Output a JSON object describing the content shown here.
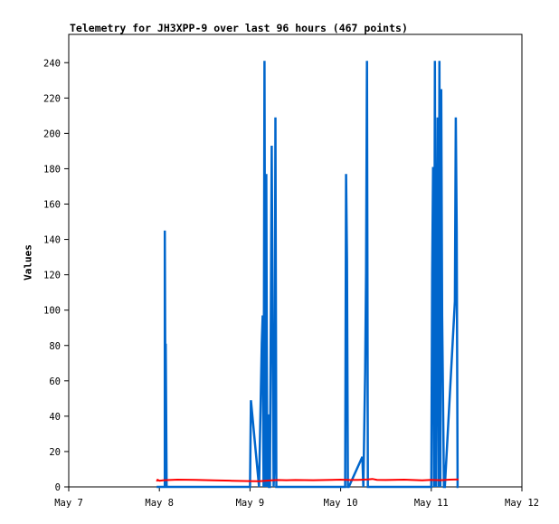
{
  "chart_data": {
    "type": "line",
    "title": "Telemetry for JH3XPP-9 over last 96 hours (467 points)",
    "xlabel": "",
    "ylabel": "Values",
    "ylim": [
      0,
      256
    ],
    "xlim": [
      0,
      5
    ],
    "x_tick_values": [
      0,
      1,
      2,
      3,
      4,
      5
    ],
    "x_tick_labels": [
      "May 7",
      "May 8",
      "May 9",
      "May 10",
      "May 11",
      "May 12"
    ],
    "y_ticks": [
      0,
      20,
      40,
      60,
      80,
      100,
      120,
      140,
      160,
      180,
      200,
      220,
      240
    ],
    "grid": false,
    "colors": {
      "series1": "#0066cc",
      "series2": "#ff0000",
      "axis": "#000000"
    },
    "series": [
      {
        "color": "#0066cc",
        "x": [
          0.97,
          1.06,
          1.06,
          1.07,
          1.07,
          1.08,
          1.08,
          1.09,
          2.0,
          2.01,
          2.1,
          2.13,
          2.14,
          2.15,
          2.16,
          2.17,
          2.18,
          2.19,
          2.2,
          2.21,
          2.22,
          2.24,
          2.25,
          2.26,
          2.27,
          2.28,
          2.29,
          2.3,
          2.31,
          2.32,
          2.33,
          2.34,
          2.35,
          3.05,
          3.06,
          3.07,
          3.08,
          3.09,
          3.24,
          3.25,
          3.27,
          3.28,
          3.29,
          3.3,
          3.31,
          3.32,
          4.0,
          4.01,
          4.02,
          4.03,
          4.04,
          4.05,
          4.07,
          4.08,
          4.09,
          4.1,
          4.11,
          4.12,
          4.13,
          4.14,
          4.15,
          4.26,
          4.27,
          4.28,
          4.29,
          4.3
        ],
        "values": [
          0,
          0,
          145,
          0,
          81,
          0,
          0,
          0,
          0,
          49,
          0,
          81,
          97,
          0,
          241,
          0,
          177,
          0,
          41,
          0,
          0,
          193,
          81,
          0,
          17,
          209,
          0,
          0,
          0,
          0,
          0,
          0,
          0,
          0,
          177,
          129,
          0,
          0,
          17,
          0,
          65,
          121,
          241,
          0,
          0,
          0,
          0,
          121,
          181,
          0,
          241,
          0,
          209,
          0,
          241,
          0,
          225,
          97,
          49,
          0,
          0,
          105,
          209,
          145,
          0,
          0
        ]
      },
      {
        "color": "#ff0000",
        "x": [
          0.97,
          0.98,
          1.0,
          1.05,
          1.2,
          1.4,
          1.6,
          1.8,
          2.0,
          2.1,
          2.2,
          2.3,
          2.4,
          2.5,
          2.7,
          2.9,
          3.0,
          3.1,
          3.2,
          3.3,
          3.35,
          3.4,
          3.5,
          3.7,
          3.9,
          4.0,
          4.1,
          4.2,
          4.3
        ],
        "values": [
          3.2,
          4.0,
          3.5,
          3.8,
          4.1,
          4.0,
          3.7,
          3.5,
          3.3,
          3.2,
          3.6,
          3.9,
          3.8,
          3.9,
          3.8,
          4.0,
          4.1,
          3.9,
          4.0,
          4.2,
          4.5,
          4.0,
          3.9,
          4.1,
          3.7,
          4.0,
          3.8,
          4.1,
          4.2
        ]
      }
    ]
  }
}
